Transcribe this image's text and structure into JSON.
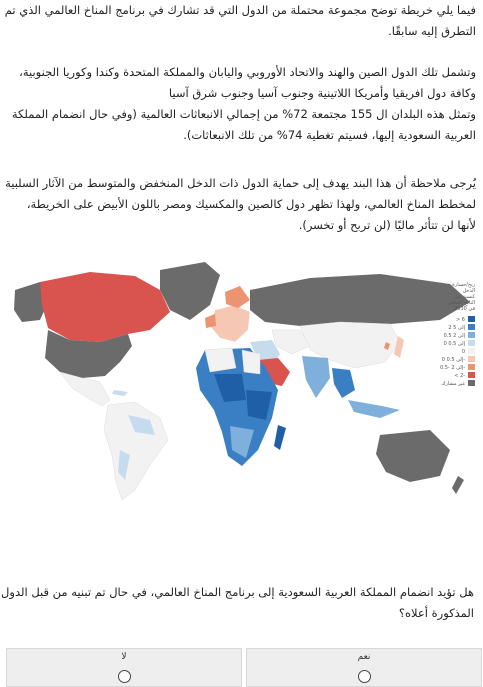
{
  "paragraph_1": [
    "فيما يلي خريطة توضح مجموعة محتملة من الدول التي قد تشارك في برنامج المناخ العالمي الذي تم",
    "التطرق إليه سابقًا."
  ],
  "paragraph_2": [
    "وتشمل تلك الدول الصين والهند والاتحاد الأوروبي واليابان والمملكة المتحدة وكندا وكوريا الجنوبية،",
    "وكافة دول افريقيا وأمريكا اللاتينية وجنوب آسيا وجنوب شرق آسيا",
    "وتمثل هذه البلدان ال 155 مجتمعة 72% من إجمالي الانبعاثات العالمية (وفي حال انضمام المملكة",
    "العربية السعودية إليها، فسيتم تغطية 74% من تلك الانبعاثات)."
  ],
  "paragraph_3": [
    "يُرجى ملاحظة أن هذا البند يهدف إلى حماية الدول ذات الدخل المنخفض والمتوسط من الآثار السلبية",
    "لمخطط المناخ العالمي، ولهذا تظهر دول كالصين والمكسيك ومصر باللون الأبيض على الخريطة،",
    "لأنها لن تتأثر ماليًا (لن تربح أو تخسر)."
  ],
  "map": {
    "legend_title": [
      "ربح/خسارة",
      "الدخل",
      "كنسبة من",
      "الناتج المحلي",
      "في 2030"
    ],
    "legend_items": [
      {
        "label": "> 6",
        "color": "#1f5fa8"
      },
      {
        "label": "2 إلى 5",
        "color": "#3a7fc4"
      },
      {
        "label": "0.5 إلى 2",
        "color": "#7fb0db"
      },
      {
        "label": "0 إلى 0.5",
        "color": "#c6dcee"
      },
      {
        "label": "0",
        "color": "#f2f2f2"
      },
      {
        "label": "0 إلى 0.5-",
        "color": "#f6c7b3"
      },
      {
        "label": "0.5- إلى 2-",
        "color": "#ec9372"
      },
      {
        "label": "< 2-",
        "color": "#d9534f"
      },
      {
        "label": "غير مشارك",
        "color": "#6b6b6b"
      }
    ]
  },
  "question": [
    "هل تؤيد انضمام المملكة العربية السعودية إلى برنامج المناخ العالمي، في حال تم تبنيه من قبل الدول",
    "المذكورة أعلاه؟"
  ],
  "options": {
    "no": "لا",
    "yes": "نعم"
  }
}
